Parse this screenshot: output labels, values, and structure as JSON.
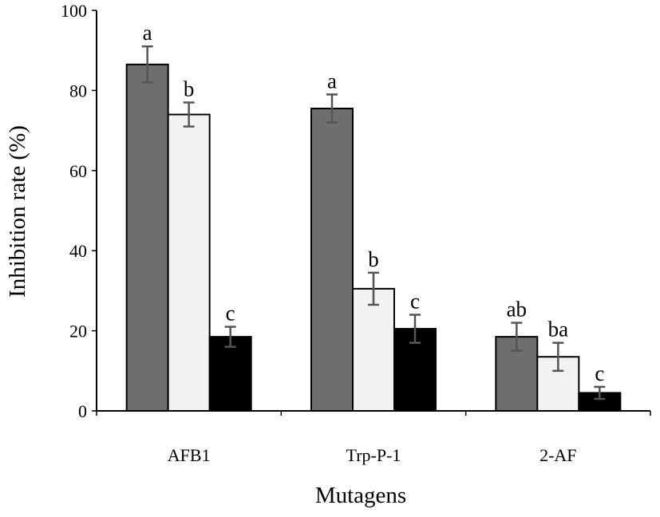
{
  "chart_data": {
    "type": "bar",
    "title": "",
    "xlabel": "Mutagens",
    "ylabel": "Inhibition rate (%)",
    "ylim": [
      0,
      100
    ],
    "yticks": [
      0,
      20,
      40,
      60,
      80,
      100
    ],
    "categories": [
      "AFB1",
      "Trp-P-1",
      "2-AF"
    ],
    "grid": false,
    "legend": "none",
    "series": [
      {
        "color": "#6e6e6e",
        "values": [
          86.5,
          75.5,
          18.5
        ],
        "errors": [
          4.5,
          3.5,
          3.5
        ],
        "labels": [
          "a",
          "a",
          "ab"
        ]
      },
      {
        "color": "#f2f2f2",
        "values": [
          74.0,
          30.5,
          13.5
        ],
        "errors": [
          3.0,
          4.0,
          3.5
        ],
        "labels": [
          "b",
          "b",
          "ba"
        ]
      },
      {
        "color": "#000000",
        "values": [
          18.5,
          20.5,
          4.5
        ],
        "errors": [
          2.5,
          3.5,
          1.5
        ],
        "labels": [
          "c",
          "c",
          "c"
        ]
      }
    ]
  }
}
